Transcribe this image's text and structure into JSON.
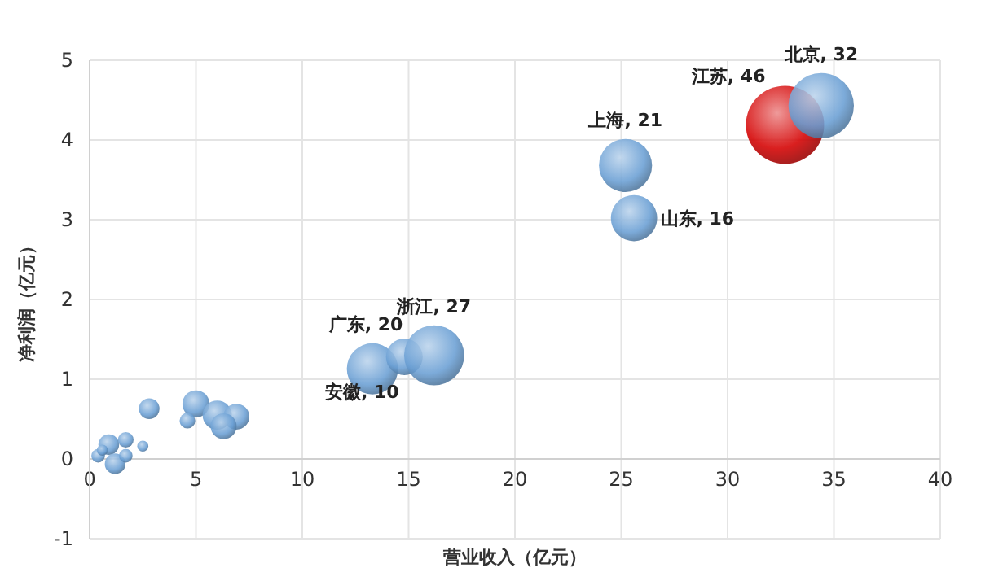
{
  "chart_data": {
    "type": "bubble",
    "xlabel": "营业收入（亿元）",
    "ylabel": "净利润（亿元）",
    "x": [
      2.8,
      5.0,
      4.6,
      6.0,
      6.9,
      6.3,
      0.9,
      1.7,
      2.5,
      1.2,
      0.4,
      1.7,
      0.6,
      13.3,
      14.8,
      16.2,
      25.2,
      25.6,
      32.7,
      34.4
    ],
    "values": [
      0.63,
      0.69,
      0.48,
      0.55,
      0.53,
      0.41,
      0.18,
      0.24,
      0.16,
      -0.06,
      0.04,
      0.04,
      0.11,
      1.13,
      1.28,
      1.3,
      3.68,
      3.02,
      4.19,
      4.43
    ],
    "sizes": [
      0.07,
      0.12,
      0.04,
      0.14,
      0.11,
      0.11,
      0.07,
      0.04,
      0.02,
      0.07,
      0.03,
      0.03,
      0.02,
      0.43,
      0.22,
      0.59,
      0.46,
      0.35,
      1,
      0.7
    ],
    "annotations": [
      {
        "text": "广东, 20",
        "x": 13.3,
        "y": 1.13
      },
      {
        "text": "安徽, 10",
        "x": 14.8,
        "y": 1.28
      },
      {
        "text": "浙江, 27",
        "x": 16.2,
        "y": 1.3
      },
      {
        "text": "上海, 21",
        "x": 25.2,
        "y": 3.68
      },
      {
        "text": "山东, 16",
        "x": 25.6,
        "y": 3.02
      },
      {
        "text": "江苏, 46",
        "x": 32.7,
        "y": 4.19
      },
      {
        "text": "北京, 32",
        "x": 34.4,
        "y": 4.43
      }
    ],
    "colors": [
      "#6a9fd4",
      "#6a9fd4",
      "#6a9fd4",
      "#6a9fd4",
      "#6a9fd4",
      "#6a9fd4",
      "#6a9fd4",
      "#6a9fd4",
      "#6a9fd4",
      "#6a9fd4",
      "#6a9fd4",
      "#6a9fd4",
      "#6a9fd4",
      "#6a9fd4",
      "#6a9fd4",
      "#6a9fd4",
      "#6a9fd4",
      "#6a9fd4",
      "#d40000",
      "#6a9fd4"
    ],
    "xlim": [
      0,
      40
    ],
    "xticks": [
      0,
      5,
      10,
      15,
      20,
      25,
      30,
      35,
      40
    ],
    "ylim": [
      -1,
      5
    ],
    "yticks": [
      -1,
      0,
      1,
      2,
      3,
      4,
      5
    ],
    "grid": true
  }
}
